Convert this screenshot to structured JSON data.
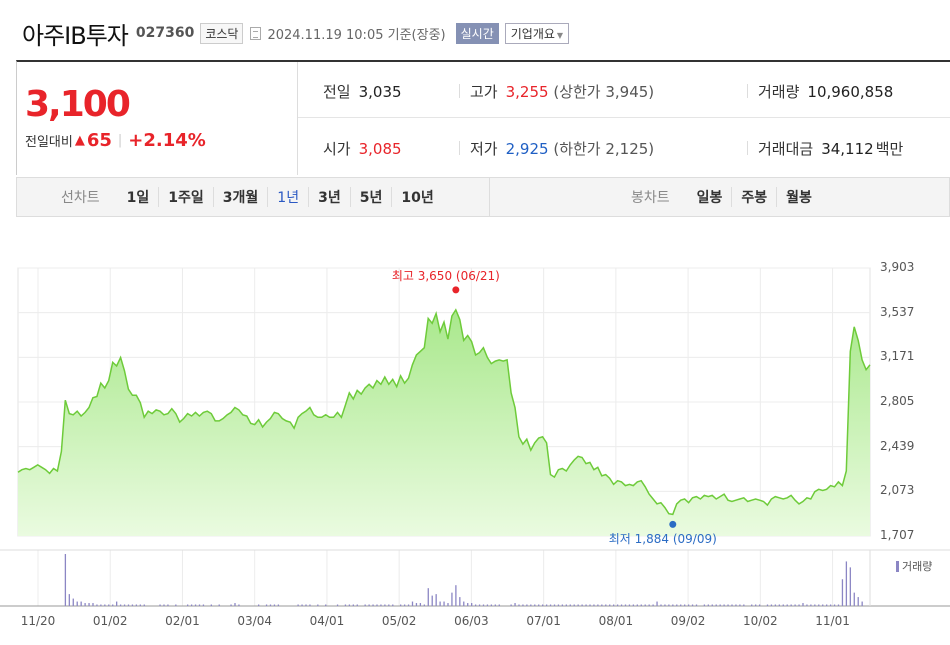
{
  "header": {
    "company": "아주IB투자",
    "code": "027360",
    "market": "코스닥",
    "asof": "2024.11.19 10:05 기준(장중)",
    "realtime_button": "실시간",
    "company_info_button": "기업개요"
  },
  "quote": {
    "price": "3,100",
    "change_label": "전일대비",
    "change_amount": "65",
    "change_pct": "+2.14%",
    "prev_close_label": "전일",
    "prev_close": "3,035",
    "high_label": "고가",
    "high": "3,255",
    "upper_limit": "(상한가 3,945)",
    "volume_label": "거래량",
    "volume": "10,960,858",
    "open_label": "시가",
    "open": "3,085",
    "low_label": "저가",
    "low": "2,925",
    "lower_limit": "(하한가 2,125)",
    "amount_label": "거래대금",
    "amount": "34,112",
    "amount_unit": "백만"
  },
  "periods": {
    "line_label": "선차트",
    "line_items": [
      "1일",
      "1주일",
      "3개월",
      "1년",
      "3년",
      "5년",
      "10년"
    ],
    "line_selected": "1년",
    "candle_label": "봉차트",
    "candle_items": [
      "일봉",
      "주봉",
      "월봉"
    ]
  },
  "chart_data": {
    "type": "area",
    "title": "",
    "ylim": [
      1707,
      3903
    ],
    "yticks": [
      "3,903",
      "3,537",
      "3,171",
      "2,805",
      "2,439",
      "2,073",
      "1,707"
    ],
    "xticks": [
      "11/20",
      "01/02",
      "02/01",
      "03/04",
      "04/01",
      "05/02",
      "06/03",
      "07/01",
      "08/01",
      "09/02",
      "10/02",
      "11/01"
    ],
    "high_annotation": "최고 3,650 (06/21)",
    "low_annotation": "최저 1,884 (09/09)",
    "volume_legend": "거래량",
    "series": [
      {
        "values": [
          2230,
          2250,
          2260,
          2250,
          2270,
          2290,
          2270,
          2250,
          2220,
          2260,
          2240,
          2400,
          2820,
          2710,
          2700,
          2730,
          2690,
          2720,
          2760,
          2840,
          2850,
          2960,
          2920,
          2980,
          3130,
          3100,
          3170,
          3060,
          2910,
          2860,
          2860,
          2800,
          2680,
          2730,
          2710,
          2740,
          2730,
          2700,
          2710,
          2750,
          2710,
          2640,
          2670,
          2710,
          2690,
          2720,
          2690,
          2720,
          2730,
          2710,
          2650,
          2650,
          2670,
          2700,
          2720,
          2760,
          2740,
          2700,
          2690,
          2630,
          2620,
          2660,
          2600,
          2640,
          2670,
          2720,
          2710,
          2670,
          2650,
          2640,
          2590,
          2680,
          2710,
          2730,
          2760,
          2700,
          2680,
          2680,
          2700,
          2680,
          2680,
          2720,
          2680,
          2780,
          2880,
          2830,
          2900,
          2870,
          2920,
          2950,
          2920,
          2980,
          2950,
          3010,
          2950,
          2990,
          2930,
          3020,
          2960,
          3000,
          3110,
          3190,
          3220,
          3250,
          3490,
          3450,
          3530,
          3380,
          3460,
          3320,
          3510,
          3560,
          3480,
          3310,
          3350,
          3300,
          3190,
          3210,
          3250,
          3170,
          3120,
          3140,
          3150,
          3140,
          3150,
          2880,
          2760,
          2520,
          2460,
          2500,
          2410,
          2470,
          2510,
          2520,
          2470,
          2210,
          2190,
          2250,
          2260,
          2240,
          2290,
          2330,
          2360,
          2350,
          2300,
          2310,
          2250,
          2270,
          2200,
          2210,
          2180,
          2130,
          2160,
          2150,
          2120,
          2130,
          2120,
          2150,
          2160,
          2110,
          2050,
          2010,
          1970,
          1980,
          1940,
          1890,
          1884,
          1970,
          2000,
          2010,
          1980,
          2020,
          2030,
          2010,
          2040,
          2030,
          2040,
          2010,
          2030,
          2050,
          2000,
          1990,
          2000,
          2010,
          2020,
          1990,
          2000,
          2010,
          2000,
          1990,
          1960,
          2010,
          2030,
          2020,
          2010,
          2020,
          2040,
          2000,
          1970,
          1990,
          2020,
          2010,
          2070,
          2090,
          2080,
          2090,
          2120,
          2110,
          2150,
          2120,
          2240,
          3220,
          3420,
          3310,
          3150,
          3070,
          3110
        ]
      }
    ],
    "volume": [
      0,
      0,
      0,
      0,
      0,
      0,
      0,
      0,
      0,
      0,
      0,
      0,
      35,
      8,
      5,
      3,
      3,
      2,
      2,
      2,
      1,
      1,
      1,
      1,
      1,
      3,
      1,
      1,
      1,
      1,
      1,
      1,
      1,
      0,
      0,
      0,
      1,
      1,
      1,
      0,
      1,
      0,
      0,
      1,
      1,
      1,
      1,
      1,
      0,
      1,
      0,
      1,
      0,
      0,
      1,
      2,
      1,
      0,
      0,
      0,
      0,
      1,
      0,
      1,
      1,
      1,
      1,
      0,
      0,
      0,
      0,
      1,
      1,
      1,
      1,
      0,
      1,
      0,
      1,
      0,
      0,
      1,
      0,
      1,
      1,
      1,
      1,
      0,
      1,
      1,
      1,
      1,
      1,
      1,
      1,
      1,
      0,
      1,
      1,
      1,
      3,
      2,
      2,
      1,
      12,
      7,
      8,
      3,
      3,
      2,
      9,
      14,
      6,
      3,
      2,
      2,
      1,
      1,
      1,
      1,
      1,
      1,
      1,
      0,
      0,
      1,
      2,
      1,
      1,
      1,
      1,
      1,
      1,
      1,
      1,
      1,
      1,
      1,
      1,
      1,
      1,
      1,
      1,
      1,
      1,
      1,
      1,
      1,
      1,
      1,
      1,
      1,
      1,
      1,
      1,
      1,
      1,
      1,
      1,
      1,
      1,
      1,
      3,
      1,
      1,
      1,
      1,
      1,
      1,
      1,
      1,
      1,
      1,
      0,
      1,
      1,
      1,
      1,
      1,
      1,
      1,
      1,
      1,
      1,
      1,
      0,
      1,
      1,
      1,
      0,
      1,
      1,
      1,
      1,
      1,
      1,
      1,
      1,
      1,
      2,
      1,
      1,
      1,
      1,
      1,
      1,
      1,
      1,
      1,
      18,
      30,
      26,
      9,
      6,
      3
    ],
    "colors": {
      "line": "#6ecb3a",
      "area_top": "#a9e88c",
      "area_bottom": "#eafbe0",
      "high": "#e8242a",
      "low": "#2b6cc4",
      "volume": "#8b86c4"
    }
  }
}
